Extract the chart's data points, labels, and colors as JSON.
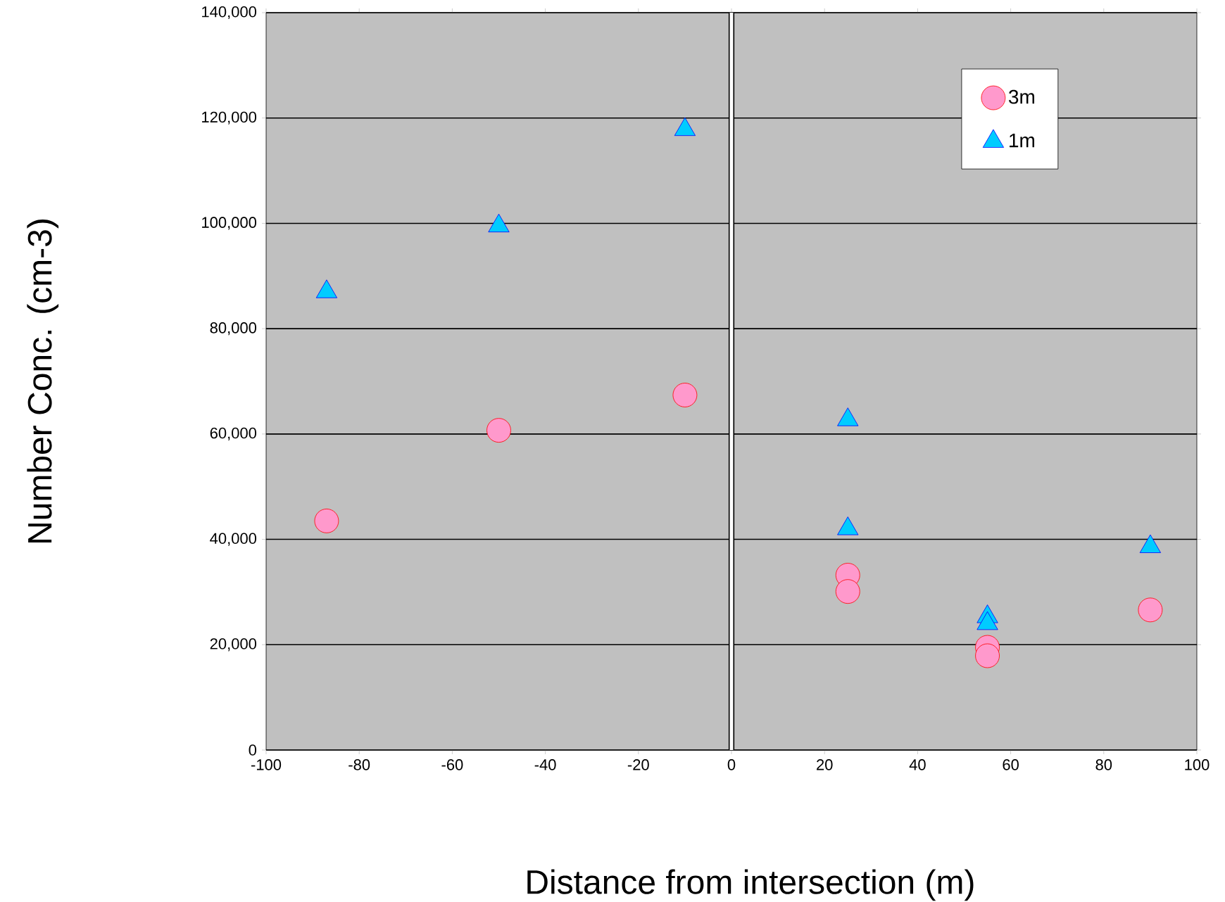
{
  "chart_data": {
    "type": "scatter",
    "xlabel": "Distance from intersection (m)",
    "ylabel": "Number Conc. (cm-3)",
    "xlim": [
      -100,
      100
    ],
    "ylim": [
      0,
      140000
    ],
    "xticks": [
      -100,
      -80,
      -60,
      -40,
      -20,
      0,
      20,
      40,
      60,
      80,
      100
    ],
    "yticks": [
      {
        "value": 0,
        "label": "0"
      },
      {
        "value": 20000,
        "label": "20,000"
      },
      {
        "value": 40000,
        "label": "40,000"
      },
      {
        "value": 60000,
        "label": "60,000"
      },
      {
        "value": 80000,
        "label": "80,000"
      },
      {
        "value": 100000,
        "label": "100,000"
      },
      {
        "value": 120000,
        "label": "120,000"
      },
      {
        "value": 140000,
        "label": "140,000"
      }
    ],
    "grid": "y",
    "legend": "top right",
    "ref_lines": [
      {
        "axis": "x",
        "value": 0,
        "color": "#000000"
      }
    ],
    "series": [
      {
        "name": "3m",
        "color": "#ff99cc",
        "marker": "circle",
        "x": [
          -87,
          -50,
          -10,
          25,
          25,
          55,
          55,
          90
        ],
        "values": [
          43500,
          60700,
          67400,
          33200,
          30100,
          19500,
          17900,
          26600
        ]
      },
      {
        "name": "1m",
        "color": "#00ccff",
        "marker": "triangle",
        "x": [
          -87,
          -50,
          -10,
          25,
          25,
          55,
          55,
          90
        ],
        "values": [
          87000,
          99500,
          117800,
          62700,
          42000,
          25300,
          24000,
          38600
        ]
      }
    ]
  }
}
